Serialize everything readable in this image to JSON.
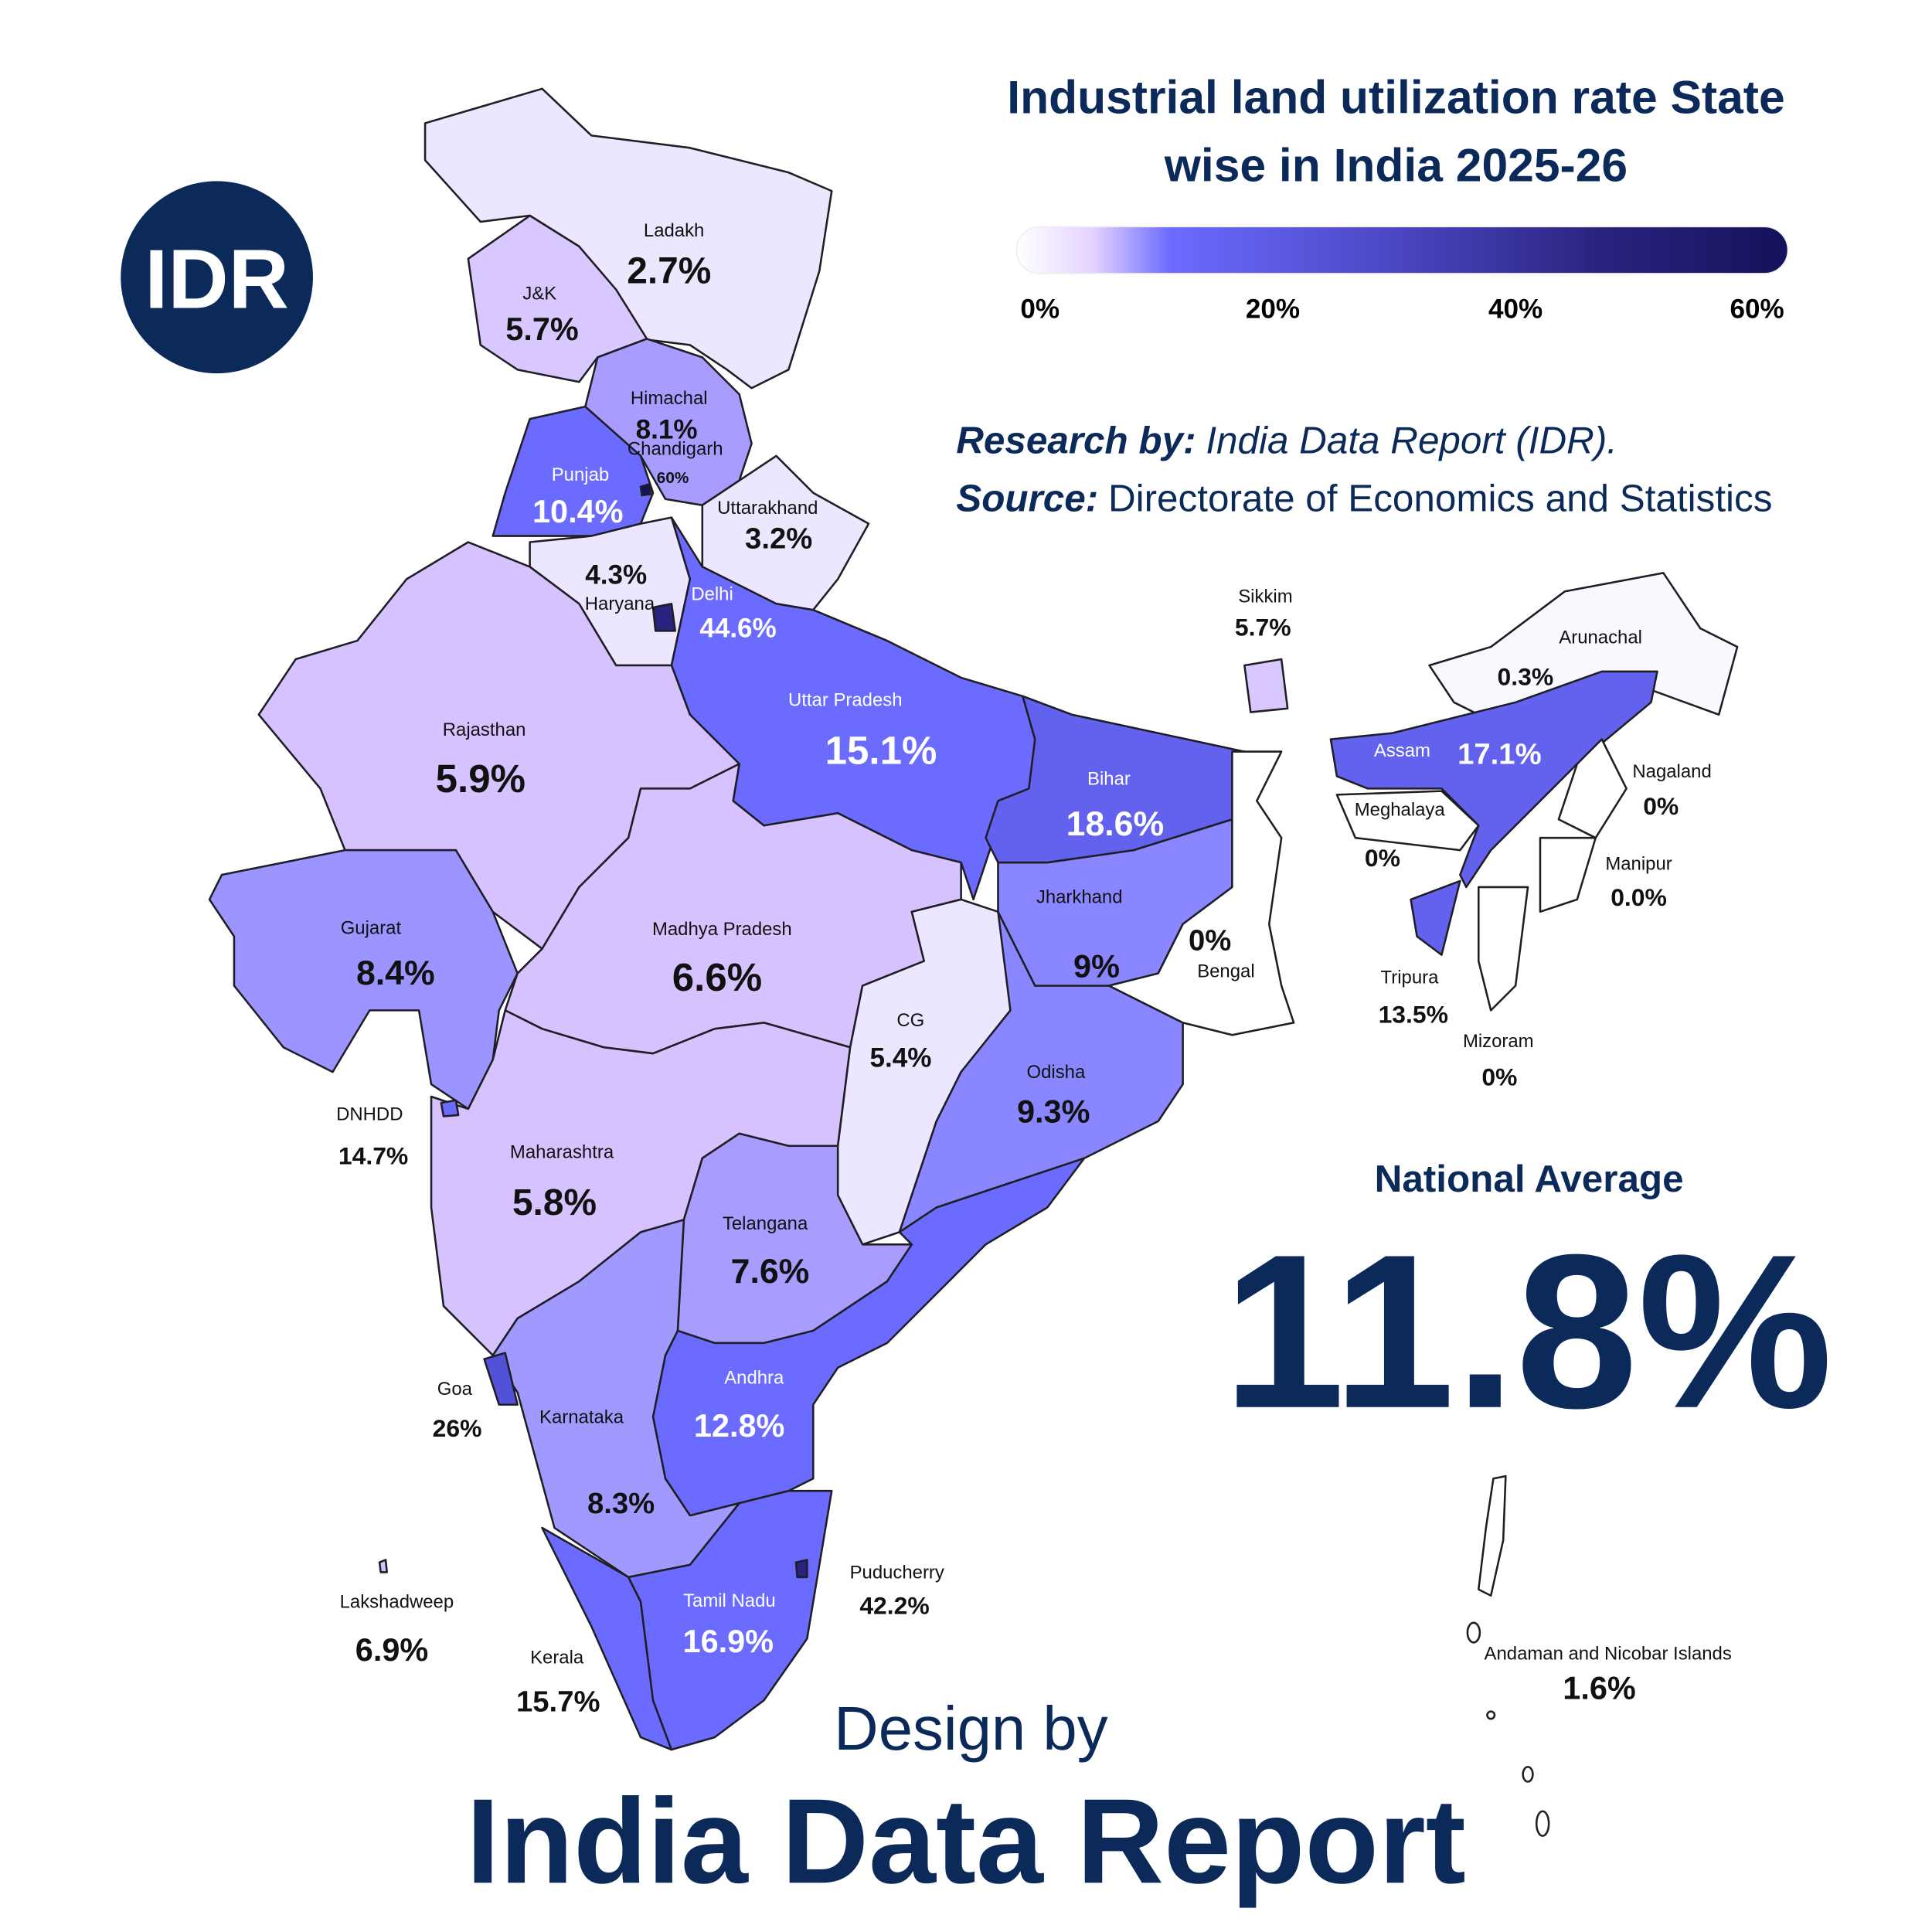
{
  "title": [
    "Industrial land utilization rate State",
    "wise in India 2025-26"
  ],
  "logo": {
    "text": "IDR",
    "color": "#0b2a5a"
  },
  "legend": {
    "ticks": [
      "0%",
      "20%",
      "40%",
      "60%"
    ],
    "range": [
      0,
      60
    ],
    "gradient": [
      "#ffffff",
      "#e3d2ff",
      "#6b6bff",
      "#4a45c0",
      "#2a2480",
      "#14125a"
    ]
  },
  "credits": {
    "research_label": "Research by:",
    "research_value": "India Data Report (IDR).",
    "source_label": "Source:",
    "source_value": "Directorate of Economics and Statistics"
  },
  "national": {
    "label": "National Average",
    "value": "11.8%"
  },
  "footer": {
    "design_by": "Design by",
    "brand": "India Data Report"
  },
  "theme": {
    "navy": "#0b2a5a"
  },
  "states": {
    "ladakh": {
      "name": "Ladakh",
      "value": "2.7%",
      "color": "#ede6ff"
    },
    "jk": {
      "name": "J&K",
      "value": "5.7%",
      "color": "#d9c8ff"
    },
    "himachal": {
      "name": "Himachal",
      "value": "8.1%",
      "color": "#a89cff"
    },
    "chandigarh": {
      "name": "Chandigarh",
      "value": "60%",
      "color": "#14125a"
    },
    "punjab": {
      "name": "Punjab",
      "value": "10.4%",
      "color": "#6b6bff"
    },
    "uttarakhand": {
      "name": "Uttarakhand",
      "value": "3.2%",
      "color": "#ede6ff"
    },
    "haryana": {
      "name": "Haryana",
      "value": "4.3%",
      "color": "#ede6ff"
    },
    "delhi": {
      "name": "Delhi",
      "value": "44.6%",
      "color": "#2a2480"
    },
    "up": {
      "name": "Uttar Pradesh",
      "value": "15.1%",
      "color": "#6b6bff"
    },
    "rajasthan": {
      "name": "Rajasthan",
      "value": "5.9%",
      "color": "#d5c2ff"
    },
    "bihar": {
      "name": "Bihar",
      "value": "18.6%",
      "color": "#6262ee"
    },
    "gujarat": {
      "name": "Gujarat",
      "value": "8.4%",
      "color": "#9c94ff"
    },
    "mp": {
      "name": "Madhya Pradesh",
      "value": "6.6%",
      "color": "#d5c2ff"
    },
    "jharkhand": {
      "name": "Jharkhand",
      "value": "9%",
      "color": "#8a86ff"
    },
    "bengal": {
      "name": "Bengal",
      "value": "0%",
      "color": "#ffffff"
    },
    "cg": {
      "name": "CG",
      "value": "5.4%",
      "color": "#ede6ff"
    },
    "odisha": {
      "name": "Odisha",
      "value": "9.3%",
      "color": "#8a86ff"
    },
    "dnhdd": {
      "name": "DNHDD",
      "value": "14.7%",
      "color": "#6b6bff"
    },
    "maharashtra": {
      "name": "Maharashtra",
      "value": "5.8%",
      "color": "#d5c2ff"
    },
    "telangana": {
      "name": "Telangana",
      "value": "7.6%",
      "color": "#a89cff"
    },
    "andhra": {
      "name": "Andhra",
      "value": "12.8%",
      "color": "#6b6bff"
    },
    "goa": {
      "name": "Goa",
      "value": "26%",
      "color": "#5252d8"
    },
    "karnataka": {
      "name": "Karnataka",
      "value": "8.3%",
      "color": "#a09aff"
    },
    "puducherry": {
      "name": "Puducherry",
      "value": "42.2%",
      "color": "#2a2480"
    },
    "lakshadweep": {
      "name": "Lakshadweep",
      "value": "6.9%",
      "color": "#d5c2ff"
    },
    "tamilnadu": {
      "name": "Tamil Nadu",
      "value": "16.9%",
      "color": "#6b6bff"
    },
    "kerala": {
      "name": "Kerala",
      "value": "15.7%",
      "color": "#6b6bff"
    },
    "sikkim": {
      "name": "Sikkim",
      "value": "5.7%",
      "color": "#d9c8ff"
    },
    "arunachal": {
      "name": "Arunachal",
      "value": "0.3%",
      "color": "#faf8ff"
    },
    "assam": {
      "name": "Assam",
      "value": "17.1%",
      "color": "#6262ee"
    },
    "nagaland": {
      "name": "Nagaland",
      "value": "0%",
      "color": "#ffffff"
    },
    "meghalaya": {
      "name": "Meghalaya",
      "value": "0%",
      "color": "#ffffff"
    },
    "manipur": {
      "name": "Manipur",
      "value": "0.0%",
      "color": "#ffffff"
    },
    "tripura": {
      "name": "Tripura",
      "value": "13.5%",
      "color": "#6262ee"
    },
    "mizoram": {
      "name": "Mizoram",
      "value": "0%",
      "color": "#ffffff"
    },
    "andaman": {
      "name": "Andaman and Nicobar Islands",
      "value": "1.6%",
      "color": "#ffffff"
    }
  }
}
